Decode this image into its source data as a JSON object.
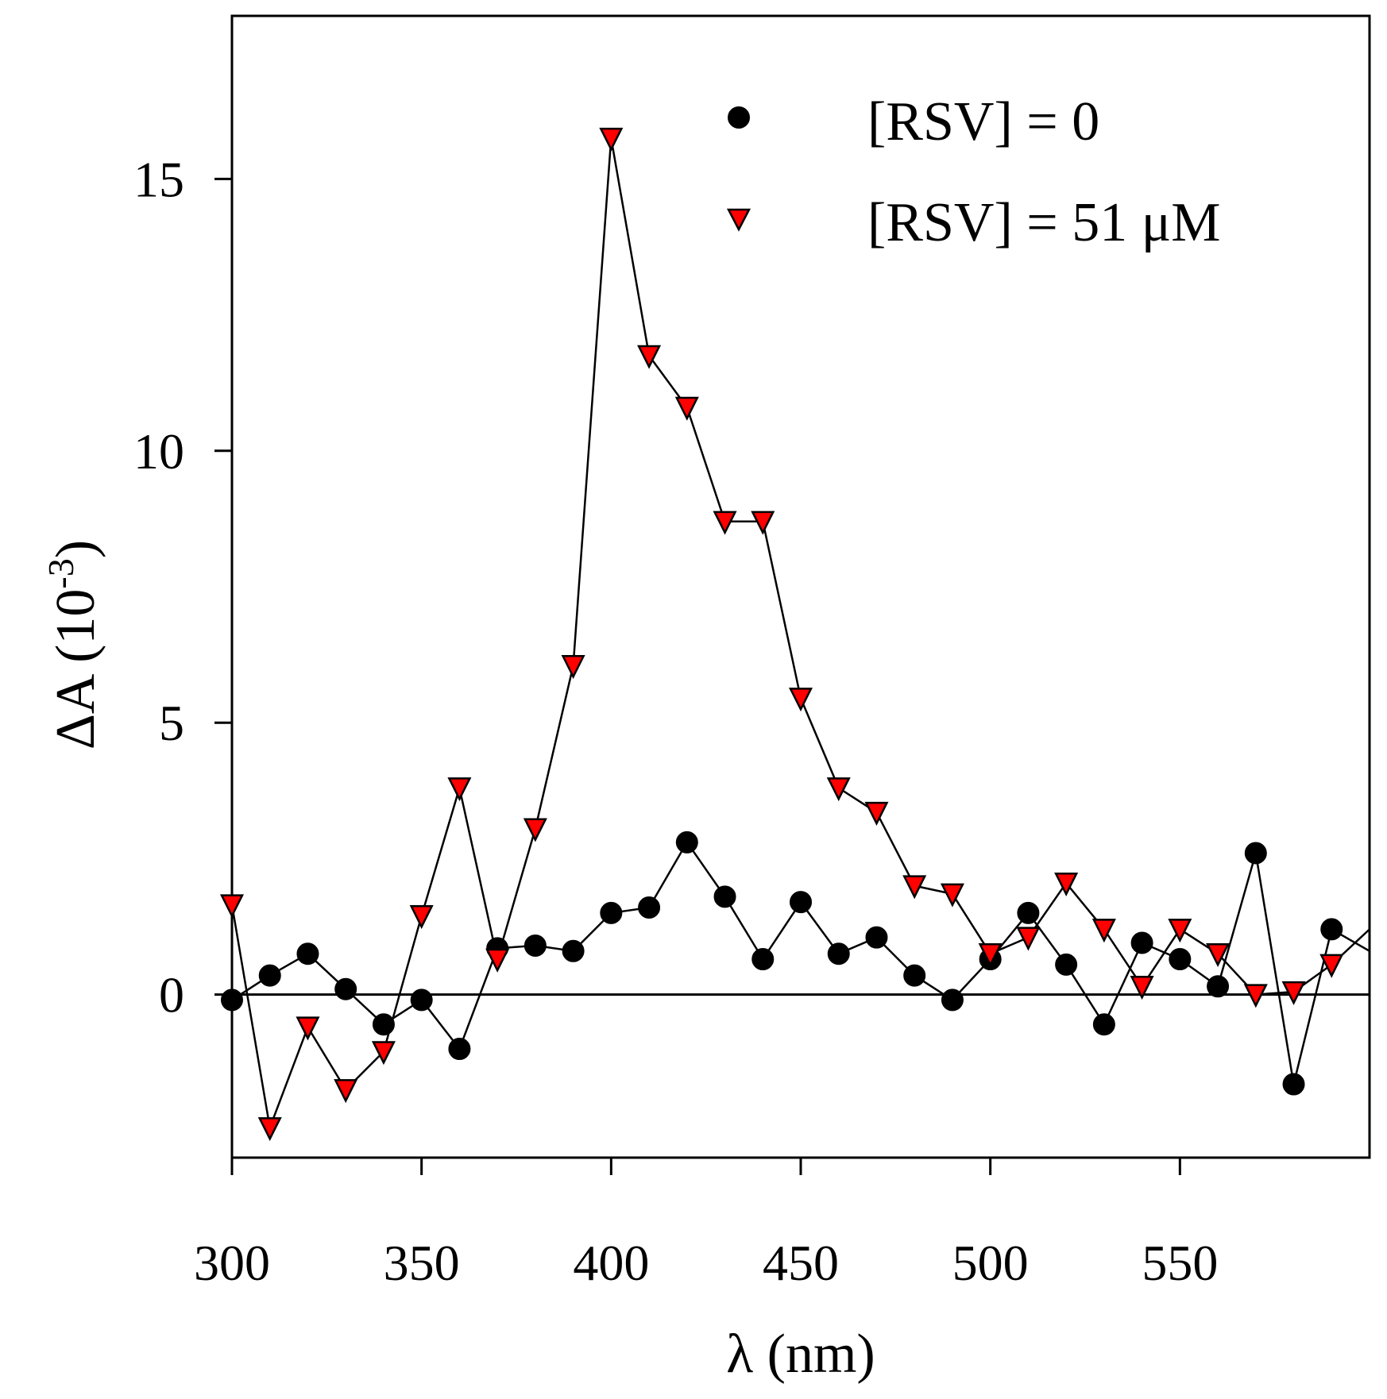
{
  "chart_data": {
    "type": "line",
    "title": "",
    "xlabel": "λ (nm)",
    "ylabel_main": "ΔA (10",
    "ylabel_sup": "-3",
    "ylabel_close": ")",
    "xlim": [
      300,
      600
    ],
    "ylim": [
      -3,
      18
    ],
    "xticks": [
      300,
      350,
      400,
      450,
      500,
      550
    ],
    "xtick_labels": [
      "300",
      "350",
      "400",
      "450",
      "500",
      "550"
    ],
    "yticks": [
      0,
      5,
      10,
      15
    ],
    "ytick_labels": [
      "0",
      "5",
      "10",
      "15"
    ],
    "zero_line": true,
    "legend_position": "top-right",
    "x": [
      300,
      310,
      320,
      330,
      340,
      350,
      360,
      370,
      380,
      390,
      400,
      410,
      420,
      430,
      440,
      450,
      460,
      470,
      480,
      490,
      500,
      510,
      520,
      530,
      540,
      550,
      560,
      570,
      580,
      590,
      600
    ],
    "series": [
      {
        "name": "[RSV] = 0",
        "marker": "circle",
        "color": "#000000",
        "values": [
          -0.1,
          0.35,
          0.75,
          0.1,
          -0.55,
          -0.1,
          -1.0,
          0.85,
          0.9,
          0.8,
          1.5,
          1.6,
          2.8,
          1.8,
          0.65,
          1.7,
          0.75,
          1.05,
          0.35,
          -0.1,
          0.65,
          1.5,
          0.55,
          -0.55,
          0.95,
          0.65,
          0.15,
          2.6,
          -1.65,
          1.2,
          0.8
        ]
      },
      {
        "name": "[RSV] = 51 μM",
        "marker": "triangle-down",
        "color": "#ff0000",
        "values": [
          1.65,
          -2.45,
          -0.6,
          -1.75,
          -1.05,
          1.45,
          3.8,
          0.65,
          3.05,
          6.05,
          15.75,
          11.75,
          10.8,
          8.7,
          8.7,
          5.45,
          3.8,
          3.35,
          2.0,
          1.85,
          0.75,
          1.05,
          2.05,
          1.2,
          0.15,
          1.2,
          0.75,
          0.0,
          0.05,
          0.55,
          1.2
        ]
      }
    ]
  }
}
